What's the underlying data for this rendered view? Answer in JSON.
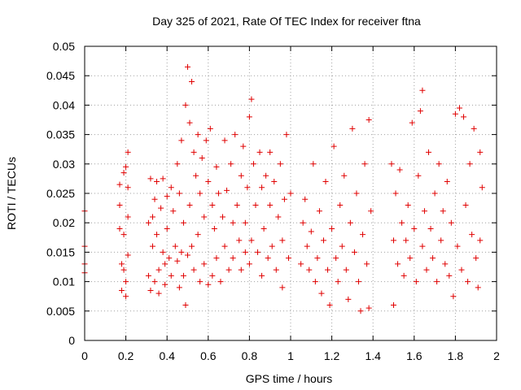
{
  "chart_data": {
    "type": "scatter",
    "title": "Day 325 of 2021, Rate Of TEC Index for receiver ftna",
    "xlabel": "GPS time / hours",
    "ylabel": "ROTI / TECUs",
    "xlim": [
      0,
      2
    ],
    "ylim": [
      0,
      0.05
    ],
    "x_ticks": [
      "0",
      "0.2",
      "0.4",
      "0.6",
      "0.8",
      "1",
      "1.2",
      "1.4",
      "1.6",
      "1.8",
      "2"
    ],
    "y_ticks": [
      "0",
      "0.005",
      "0.01",
      "0.015",
      "0.02",
      "0.025",
      "0.03",
      "0.035",
      "0.04",
      "0.045",
      "0.05"
    ],
    "grid": true,
    "marker": "plus",
    "color": "#e00000",
    "series": [
      {
        "points": [
          [
            0.0,
            0.022
          ],
          [
            0.0,
            0.016
          ],
          [
            0.0,
            0.013
          ],
          [
            0.0,
            0.0115
          ],
          [
            0.17,
            0.0265
          ],
          [
            0.17,
            0.023
          ],
          [
            0.17,
            0.019
          ],
          [
            0.18,
            0.013
          ],
          [
            0.18,
            0.0085
          ],
          [
            0.19,
            0.0285
          ],
          [
            0.19,
            0.018
          ],
          [
            0.19,
            0.012
          ],
          [
            0.2,
            0.0295
          ],
          [
            0.2,
            0.01
          ],
          [
            0.2,
            0.0075
          ],
          [
            0.21,
            0.032
          ],
          [
            0.21,
            0.026
          ],
          [
            0.21,
            0.021
          ],
          [
            0.21,
            0.0145
          ],
          [
            0.31,
            0.02
          ],
          [
            0.31,
            0.011
          ],
          [
            0.32,
            0.0275
          ],
          [
            0.32,
            0.0085
          ],
          [
            0.33,
            0.021
          ],
          [
            0.33,
            0.016
          ],
          [
            0.34,
            0.024
          ],
          [
            0.34,
            0.01
          ],
          [
            0.35,
            0.018
          ],
          [
            0.35,
            0.027
          ],
          [
            0.36,
            0.012
          ],
          [
            0.36,
            0.008
          ],
          [
            0.37,
            0.0225
          ],
          [
            0.38,
            0.015
          ],
          [
            0.38,
            0.0275
          ],
          [
            0.39,
            0.013
          ],
          [
            0.39,
            0.0095
          ],
          [
            0.4,
            0.0245
          ],
          [
            0.4,
            0.019
          ],
          [
            0.41,
            0.014
          ],
          [
            0.42,
            0.026
          ],
          [
            0.42,
            0.011
          ],
          [
            0.43,
            0.022
          ],
          [
            0.44,
            0.016
          ],
          [
            0.45,
            0.03
          ],
          [
            0.45,
            0.0135
          ],
          [
            0.46,
            0.025
          ],
          [
            0.46,
            0.009
          ],
          [
            0.47,
            0.034
          ],
          [
            0.47,
            0.015
          ],
          [
            0.48,
            0.02
          ],
          [
            0.48,
            0.011
          ],
          [
            0.49,
            0.04
          ],
          [
            0.49,
            0.006
          ],
          [
            0.5,
            0.0465
          ],
          [
            0.5,
            0.0145
          ],
          [
            0.51,
            0.037
          ],
          [
            0.51,
            0.023
          ],
          [
            0.52,
            0.044
          ],
          [
            0.52,
            0.016
          ],
          [
            0.53,
            0.032
          ],
          [
            0.53,
            0.012
          ],
          [
            0.54,
            0.028
          ],
          [
            0.55,
            0.035
          ],
          [
            0.55,
            0.018
          ],
          [
            0.56,
            0.025
          ],
          [
            0.56,
            0.01
          ],
          [
            0.57,
            0.031
          ],
          [
            0.58,
            0.021
          ],
          [
            0.58,
            0.013
          ],
          [
            0.59,
            0.034
          ],
          [
            0.6,
            0.027
          ],
          [
            0.6,
            0.0095
          ],
          [
            0.61,
            0.036
          ],
          [
            0.62,
            0.023
          ],
          [
            0.62,
            0.011
          ],
          [
            0.63,
            0.019
          ],
          [
            0.64,
            0.0295
          ],
          [
            0.64,
            0.014
          ],
          [
            0.65,
            0.025
          ],
          [
            0.66,
            0.01
          ],
          [
            0.67,
            0.021
          ],
          [
            0.68,
            0.034
          ],
          [
            0.68,
            0.016
          ],
          [
            0.69,
            0.0255
          ],
          [
            0.7,
            0.012
          ],
          [
            0.71,
            0.03
          ],
          [
            0.72,
            0.02
          ],
          [
            0.72,
            0.014
          ],
          [
            0.73,
            0.035
          ],
          [
            0.74,
            0.023
          ],
          [
            0.75,
            0.017
          ],
          [
            0.76,
            0.028
          ],
          [
            0.76,
            0.012
          ],
          [
            0.77,
            0.033
          ],
          [
            0.78,
            0.02
          ],
          [
            0.78,
            0.015
          ],
          [
            0.79,
            0.026
          ],
          [
            0.8,
            0.038
          ],
          [
            0.8,
            0.013
          ],
          [
            0.81,
            0.041
          ],
          [
            0.81,
            0.017
          ],
          [
            0.82,
            0.03
          ],
          [
            0.83,
            0.023
          ],
          [
            0.84,
            0.015
          ],
          [
            0.85,
            0.032
          ],
          [
            0.86,
            0.026
          ],
          [
            0.86,
            0.011
          ],
          [
            0.87,
            0.019
          ],
          [
            0.88,
            0.028
          ],
          [
            0.89,
            0.014
          ],
          [
            0.9,
            0.032
          ],
          [
            0.9,
            0.023
          ],
          [
            0.91,
            0.016
          ],
          [
            0.92,
            0.027
          ],
          [
            0.93,
            0.012
          ],
          [
            0.94,
            0.021
          ],
          [
            0.95,
            0.03
          ],
          [
            0.96,
            0.017
          ],
          [
            0.96,
            0.009
          ],
          [
            0.97,
            0.024
          ],
          [
            0.98,
            0.035
          ],
          [
            0.99,
            0.014
          ],
          [
            1.0,
            0.025
          ],
          [
            1.05,
            0.013
          ],
          [
            1.06,
            0.02
          ],
          [
            1.07,
            0.024
          ],
          [
            1.08,
            0.016
          ],
          [
            1.09,
            0.012
          ],
          [
            1.1,
            0.0185
          ],
          [
            1.11,
            0.03
          ],
          [
            1.12,
            0.01
          ],
          [
            1.13,
            0.014
          ],
          [
            1.14,
            0.022
          ],
          [
            1.15,
            0.008
          ],
          [
            1.16,
            0.017
          ],
          [
            1.17,
            0.027
          ],
          [
            1.18,
            0.012
          ],
          [
            1.19,
            0.006
          ],
          [
            1.2,
            0.019
          ],
          [
            1.21,
            0.033
          ],
          [
            1.22,
            0.014
          ],
          [
            1.23,
            0.01
          ],
          [
            1.24,
            0.023
          ],
          [
            1.25,
            0.016
          ],
          [
            1.26,
            0.028
          ],
          [
            1.27,
            0.012
          ],
          [
            1.28,
            0.007
          ],
          [
            1.29,
            0.02
          ],
          [
            1.3,
            0.036
          ],
          [
            1.31,
            0.015
          ],
          [
            1.32,
            0.025
          ],
          [
            1.33,
            0.01
          ],
          [
            1.34,
            0.005
          ],
          [
            1.35,
            0.018
          ],
          [
            1.36,
            0.03
          ],
          [
            1.37,
            0.013
          ],
          [
            1.38,
            0.0375
          ],
          [
            1.38,
            0.0055
          ],
          [
            1.39,
            0.022
          ],
          [
            1.49,
            0.03
          ],
          [
            1.5,
            0.017
          ],
          [
            1.5,
            0.006
          ],
          [
            1.51,
            0.025
          ],
          [
            1.52,
            0.013
          ],
          [
            1.53,
            0.029
          ],
          [
            1.54,
            0.02
          ],
          [
            1.55,
            0.011
          ],
          [
            1.56,
            0.017
          ],
          [
            1.57,
            0.023
          ],
          [
            1.58,
            0.014
          ],
          [
            1.59,
            0.037
          ],
          [
            1.6,
            0.019
          ],
          [
            1.61,
            0.01
          ],
          [
            1.62,
            0.028
          ],
          [
            1.63,
            0.039
          ],
          [
            1.64,
            0.0425
          ],
          [
            1.64,
            0.016
          ],
          [
            1.65,
            0.022
          ],
          [
            1.66,
            0.012
          ],
          [
            1.67,
            0.032
          ],
          [
            1.68,
            0.019
          ],
          [
            1.69,
            0.014
          ],
          [
            1.7,
            0.025
          ],
          [
            1.71,
            0.01
          ],
          [
            1.72,
            0.03
          ],
          [
            1.73,
            0.017
          ],
          [
            1.74,
            0.022
          ],
          [
            1.75,
            0.013
          ],
          [
            1.76,
            0.027
          ],
          [
            1.77,
            0.011
          ],
          [
            1.78,
            0.02
          ],
          [
            1.79,
            0.0075
          ],
          [
            1.8,
            0.0385
          ],
          [
            1.81,
            0.016
          ],
          [
            1.82,
            0.0395
          ],
          [
            1.83,
            0.012
          ],
          [
            1.84,
            0.038
          ],
          [
            1.85,
            0.023
          ],
          [
            1.86,
            0.01
          ],
          [
            1.87,
            0.03
          ],
          [
            1.88,
            0.018
          ],
          [
            1.89,
            0.036
          ],
          [
            1.9,
            0.014
          ],
          [
            1.91,
            0.009
          ],
          [
            1.92,
            0.032
          ],
          [
            1.92,
            0.017
          ],
          [
            1.93,
            0.026
          ]
        ]
      }
    ]
  }
}
